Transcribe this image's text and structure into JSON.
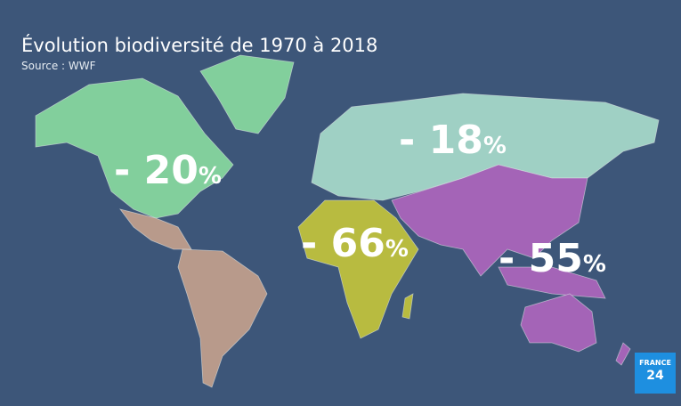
{
  "header": {
    "title": "Évolution biodiversité de 1970 à 2018",
    "source": "Source : WWF"
  },
  "regions": [
    {
      "text": "- 20",
      "percent": "%",
      "color": "#82cf9c"
    },
    {
      "text": "- 18",
      "percent": "%",
      "color": "#9fd0c4"
    },
    {
      "text": "- 66",
      "percent": "%",
      "color": "#b8bb40"
    },
    {
      "text": "- 55",
      "percent": "%",
      "color": "#a464b7"
    }
  ],
  "south_america_color": "#b89a8b",
  "logo": {
    "line1": "FRANCE",
    "line2": "24"
  }
}
